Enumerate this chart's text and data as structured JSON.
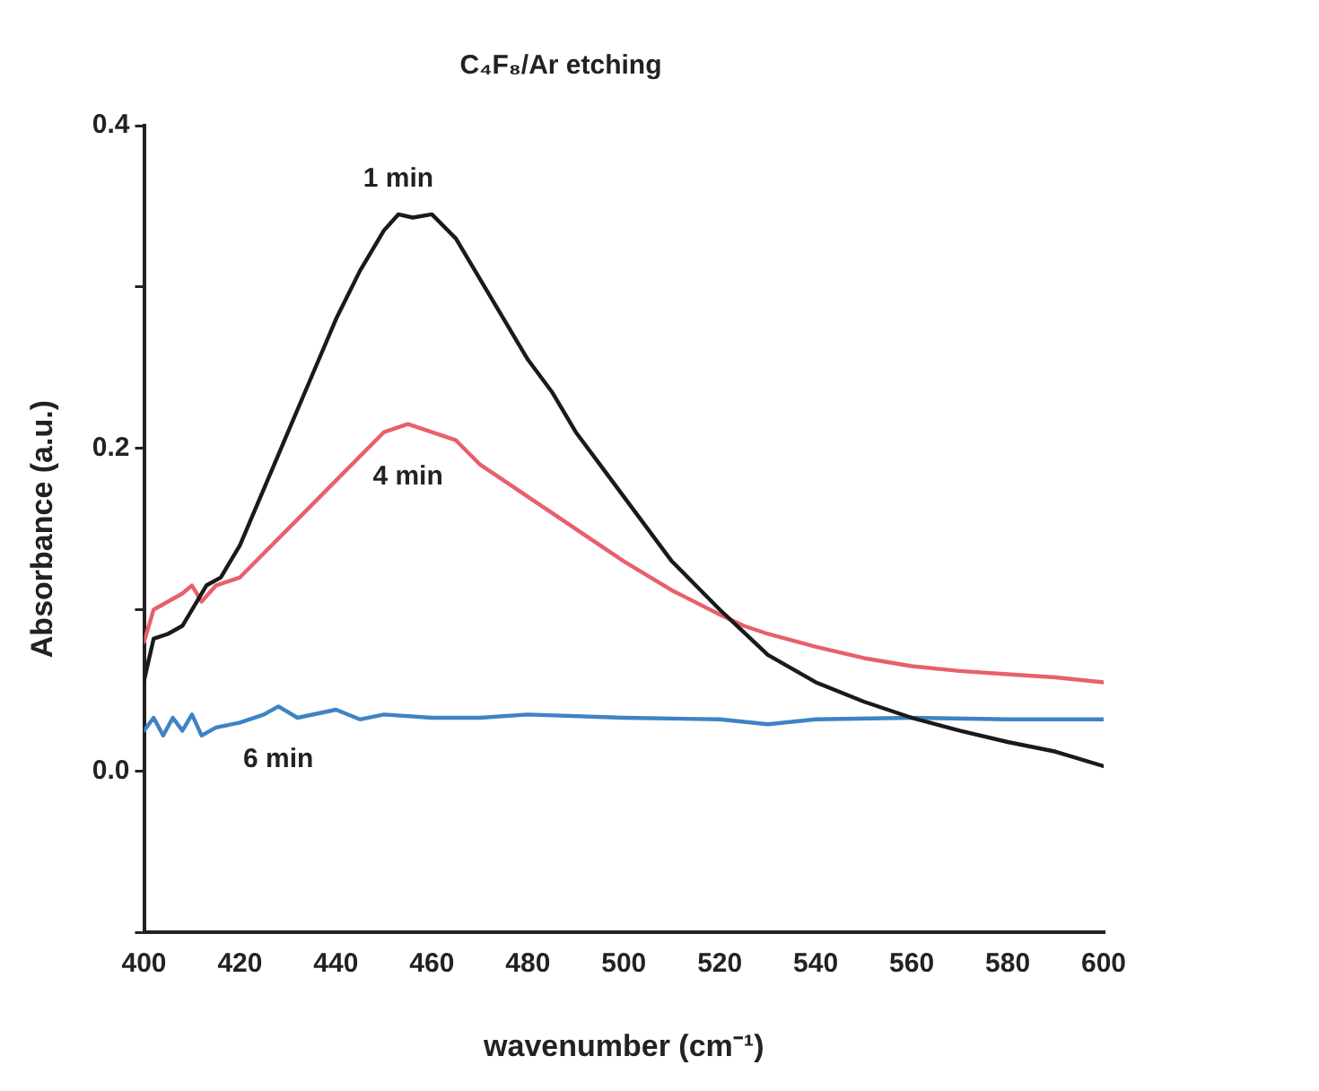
{
  "chart_data": {
    "type": "line",
    "title": "C₄F₈/Ar etching",
    "xlabel": "wavenumber (cm⁻¹)",
    "ylabel": "Absorbance (a.u.)",
    "xlim": [
      400,
      600
    ],
    "xticks": [
      400,
      420,
      440,
      460,
      480,
      500,
      520,
      540,
      560,
      580,
      600
    ],
    "ylim": [
      -0.1,
      0.4
    ],
    "yticks": [
      {
        "value": -0.1,
        "label": null
      },
      "0.0",
      {
        "value": 0.1,
        "label": null
      },
      {
        "value": 0.2,
        "label": "0.2"
      },
      {
        "value": 0.3,
        "label": null
      },
      {
        "value": 0.4,
        "label": "0.4"
      }
    ],
    "grid": false,
    "legend": false,
    "marker": "none",
    "line_style": "solid",
    "series": [
      {
        "name": "1 min",
        "color": "#1a1a1a",
        "x": [
          400,
          402,
          405,
          408,
          410,
          413,
          416,
          420,
          425,
          430,
          435,
          440,
          445,
          450,
          453,
          456,
          460,
          465,
          470,
          475,
          480,
          485,
          490,
          495,
          500,
          505,
          510,
          515,
          520,
          525,
          530,
          540,
          550,
          560,
          570,
          580,
          590,
          600
        ],
        "values": [
          0.056,
          0.082,
          0.085,
          0.09,
          0.1,
          0.115,
          0.12,
          0.14,
          0.175,
          0.21,
          0.245,
          0.28,
          0.31,
          0.335,
          0.345,
          0.343,
          0.345,
          0.33,
          0.305,
          0.28,
          0.255,
          0.235,
          0.21,
          0.19,
          0.17,
          0.15,
          0.13,
          0.115,
          0.1,
          0.086,
          0.072,
          0.055,
          0.043,
          0.033,
          0.025,
          0.018,
          0.012,
          0.003
        ]
      },
      {
        "name": "4 min",
        "color": "#e8606a",
        "x": [
          400,
          402,
          405,
          408,
          410,
          412,
          415,
          420,
          425,
          430,
          435,
          440,
          445,
          450,
          455,
          460,
          465,
          470,
          475,
          480,
          490,
          500,
          510,
          520,
          525,
          530,
          540,
          550,
          560,
          570,
          580,
          590,
          600
        ],
        "values": [
          0.08,
          0.1,
          0.105,
          0.11,
          0.115,
          0.105,
          0.115,
          0.12,
          0.135,
          0.15,
          0.165,
          0.18,
          0.195,
          0.21,
          0.215,
          0.21,
          0.205,
          0.19,
          0.18,
          0.17,
          0.15,
          0.13,
          0.112,
          0.097,
          0.09,
          0.085,
          0.077,
          0.07,
          0.065,
          0.062,
          0.06,
          0.058,
          0.055
        ]
      },
      {
        "name": "6 min",
        "color": "#3f83c4",
        "x": [
          400,
          402,
          404,
          406,
          408,
          410,
          412,
          415,
          420,
          425,
          428,
          432,
          440,
          445,
          450,
          460,
          470,
          480,
          500,
          520,
          530,
          540,
          560,
          580,
          600
        ],
        "values": [
          0.025,
          0.033,
          0.022,
          0.033,
          0.025,
          0.035,
          0.022,
          0.027,
          0.03,
          0.035,
          0.04,
          0.033,
          0.038,
          0.032,
          0.035,
          0.033,
          0.033,
          0.035,
          0.033,
          0.032,
          0.029,
          0.032,
          0.033,
          0.032,
          0.032
        ]
      }
    ]
  }
}
